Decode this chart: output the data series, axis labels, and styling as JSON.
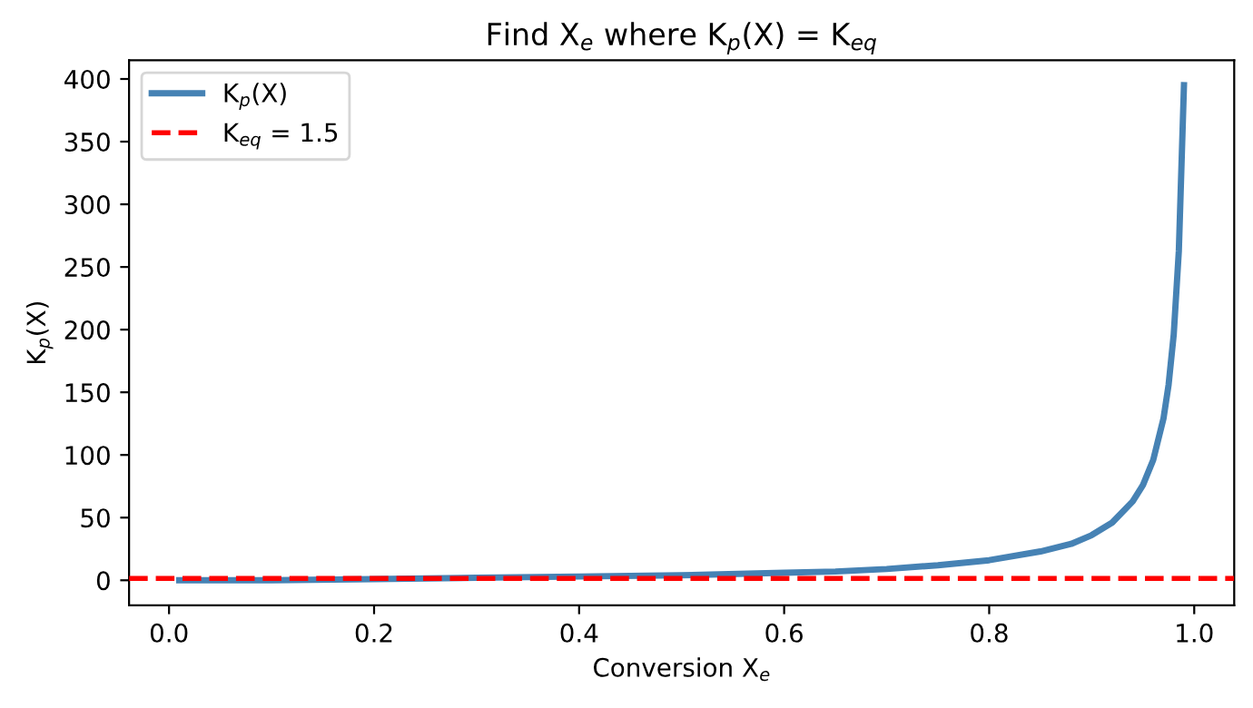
{
  "chart_data": {
    "type": "line",
    "title": "Find X$_{e}$ where K$_{p}$(X) = K$_{eq}$",
    "xlabel": "Conversion X$_{e}$",
    "ylabel": "K$_{p}$(X)",
    "x": [
      0.01,
      0.1,
      0.2,
      0.3,
      0.4,
      0.5,
      0.6,
      0.65,
      0.7,
      0.75,
      0.8,
      0.85,
      0.88,
      0.9,
      0.92,
      0.94,
      0.95,
      0.96,
      0.97,
      0.975,
      0.98,
      0.985,
      0.99
    ],
    "series": [
      {
        "name": "K$_{p}$(X)",
        "color": "#4682b4",
        "values": [
          0,
          0,
          1,
          2,
          3,
          4,
          6,
          7,
          9,
          12,
          16,
          23,
          29,
          36,
          46,
          63,
          76,
          96,
          129,
          156,
          196,
          263,
          395
        ]
      }
    ],
    "ref_lines": [
      {
        "axis": "y",
        "value": 1.5,
        "label": "K$_{eq}$ = 1.5",
        "color": "#ff0000",
        "line_style": "dashed"
      }
    ],
    "xlim": [
      -0.039,
      1.039
    ],
    "ylim": [
      -20,
      415
    ],
    "xticks": [
      {
        "value": 0,
        "label": "0.0"
      },
      0.2,
      0.4,
      0.6,
      0.8,
      {
        "value": 1,
        "label": "1.0"
      }
    ],
    "yticks": [
      0,
      50,
      100,
      150,
      200,
      250,
      300,
      350,
      400
    ],
    "legend": "top left",
    "grid": false,
    "marker": "none",
    "line_style": "solid"
  }
}
